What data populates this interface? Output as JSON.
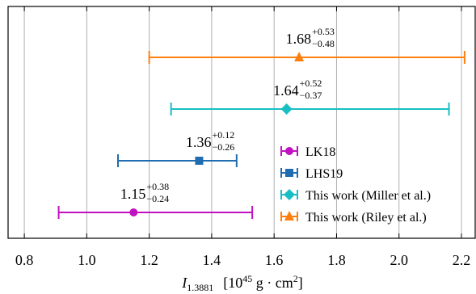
{
  "chart_data": {
    "type": "errorbar",
    "xlabel": {
      "symbol": "I",
      "subscript": "1.3881",
      "unit_open": "[10",
      "unit_exp": "45",
      "unit_mid": " g · cm",
      "unit_exp2": "2",
      "unit_close": "]"
    },
    "xlim": [
      0.748,
      2.244
    ],
    "xticks": [
      {
        "value": 0.8,
        "label": "0.8"
      },
      {
        "value": 1.0,
        "label": "1.0"
      },
      {
        "value": 1.2,
        "label": "1.2"
      },
      {
        "value": 1.4,
        "label": "1.4"
      },
      {
        "value": 1.6,
        "label": "1.6"
      },
      {
        "value": 1.8,
        "label": "1.8"
      },
      {
        "value": 2.0,
        "label": "2.0"
      },
      {
        "value": 2.2,
        "label": "2.2"
      }
    ],
    "grid": true,
    "legend": "lower-right",
    "series": [
      {
        "name": "LK18",
        "color": "#c010c0",
        "marker": "circle",
        "values": [
          1.15
        ],
        "err_minus": [
          -0.24
        ],
        "err_plus": [
          0.38
        ],
        "value_labels": [
          "1.15"
        ],
        "err_minus_labels": [
          "−0.24"
        ],
        "err_plus_labels": [
          "+0.38"
        ]
      },
      {
        "name": "LHS19",
        "color": "#1f6db0",
        "marker": "square",
        "values": [
          1.36
        ],
        "err_minus": [
          -0.26
        ],
        "err_plus": [
          0.12
        ],
        "value_labels": [
          "1.36"
        ],
        "err_minus_labels": [
          "−0.26"
        ],
        "err_plus_labels": [
          "+0.12"
        ]
      },
      {
        "name": "This work (Miller et al.)",
        "color": "#17bfc4",
        "marker": "diamond",
        "values": [
          1.64
        ],
        "err_minus": [
          -0.37
        ],
        "err_plus": [
          0.52
        ],
        "value_labels": [
          "1.64"
        ],
        "err_minus_labels": [
          "−0.37"
        ],
        "err_plus_labels": [
          "+0.52"
        ]
      },
      {
        "name": "This work (Riley et al.)",
        "color": "#ff7f0e",
        "marker": "triangle",
        "values": [
          1.68
        ],
        "err_minus": [
          -0.48
        ],
        "err_plus": [
          0.53
        ],
        "value_labels": [
          "1.68"
        ],
        "err_minus_labels": [
          "−0.48"
        ],
        "err_plus_labels": [
          "+0.53"
        ]
      }
    ]
  }
}
